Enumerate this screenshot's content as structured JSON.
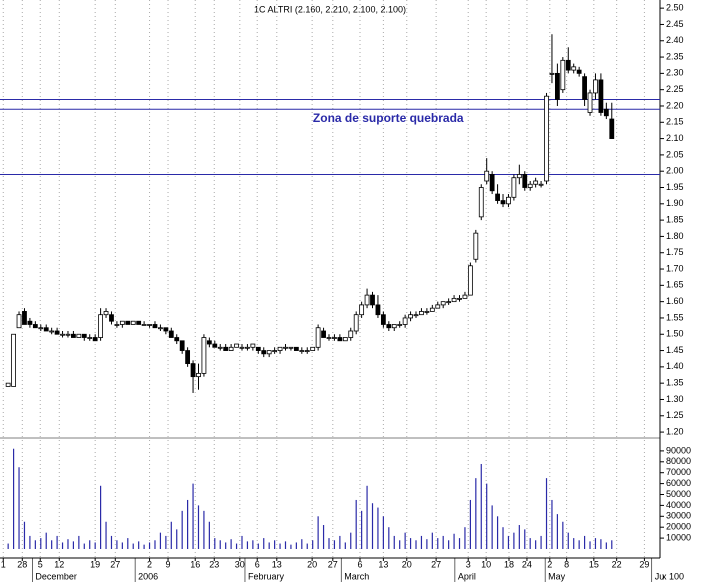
{
  "chart_data": {
    "type": "candlestick",
    "title": "1C ALTRI (2.160, 2.210, 2.100, 2.100)",
    "annotation": {
      "text": "Zona de suporte quebrada",
      "x": 69.9,
      "y": 2.16
    },
    "hlines": [
      2.22,
      2.19,
      1.99
    ],
    "hline_color": "#2a2aa8",
    "volume_unit": "x 100",
    "x": [
      0,
      1,
      2,
      3,
      4,
      5,
      6,
      7,
      8,
      9,
      10,
      11,
      12,
      13,
      14,
      15,
      16,
      17,
      18,
      19,
      20,
      21,
      22,
      23,
      24,
      25,
      26,
      27,
      28,
      29,
      30,
      31,
      32,
      33,
      34,
      35,
      36,
      37,
      38,
      39,
      40,
      41,
      42,
      43,
      44,
      45,
      46,
      47,
      48,
      49,
      50,
      51,
      52,
      53,
      54,
      55,
      56,
      57,
      58,
      59,
      60,
      61,
      62,
      63,
      64,
      65,
      66,
      67,
      68,
      69,
      70,
      71,
      72,
      73,
      74,
      75,
      76,
      77,
      78,
      79,
      80,
      81,
      82,
      83,
      84,
      85,
      86,
      87,
      88,
      89,
      90,
      91,
      92,
      93,
      94,
      95,
      96,
      97,
      98,
      99,
      100,
      101,
      102,
      103,
      104,
      105,
      106,
      107,
      108,
      109,
      110,
      111
    ],
    "open": [
      1.34,
      1.34,
      1.52,
      1.57,
      1.54,
      1.53,
      1.52,
      1.52,
      1.51,
      1.51,
      1.5,
      1.5,
      1.5,
      1.49,
      1.5,
      1.49,
      1.49,
      1.49,
      1.56,
      1.56,
      1.53,
      1.53,
      1.54,
      1.53,
      1.54,
      1.53,
      1.53,
      1.53,
      1.52,
      1.52,
      1.51,
      1.49,
      1.48,
      1.45,
      1.41,
      1.37,
      1.38,
      1.48,
      1.47,
      1.46,
      1.46,
      1.45,
      1.46,
      1.46,
      1.46,
      1.46,
      1.46,
      1.45,
      1.44,
      1.45,
      1.45,
      1.46,
      1.46,
      1.46,
      1.45,
      1.45,
      1.45,
      1.46,
      1.51,
      1.49,
      1.49,
      1.49,
      1.48,
      1.49,
      1.51,
      1.56,
      1.59,
      1.62,
      1.59,
      1.56,
      1.53,
      1.52,
      1.53,
      1.53,
      1.55,
      1.56,
      1.56,
      1.57,
      1.57,
      1.58,
      1.59,
      1.6,
      1.6,
      1.61,
      1.61,
      1.62,
      1.73,
      1.86,
      1.97,
      1.99,
      1.93,
      1.91,
      1.9,
      1.92,
      1.98,
      1.99,
      1.95,
      1.96,
      1.96,
      1.97,
      2.3,
      2.3,
      2.25,
      2.34,
      2.31,
      2.31,
      2.29,
      2.18,
      2.24,
      2.28,
      2.19,
      2.16
    ],
    "high": [
      1.35,
      1.5,
      1.57,
      1.58,
      1.55,
      1.54,
      1.53,
      1.53,
      1.52,
      1.52,
      1.51,
      1.51,
      1.51,
      1.5,
      1.5,
      1.5,
      1.5,
      1.58,
      1.58,
      1.57,
      1.54,
      1.54,
      1.54,
      1.54,
      1.54,
      1.54,
      1.53,
      1.54,
      1.53,
      1.52,
      1.52,
      1.5,
      1.48,
      1.46,
      1.42,
      1.41,
      1.5,
      1.49,
      1.48,
      1.47,
      1.47,
      1.47,
      1.47,
      1.47,
      1.47,
      1.47,
      1.46,
      1.46,
      1.45,
      1.46,
      1.46,
      1.47,
      1.46,
      1.46,
      1.46,
      1.46,
      1.46,
      1.53,
      1.52,
      1.5,
      1.5,
      1.5,
      1.49,
      1.52,
      1.57,
      1.6,
      1.64,
      1.63,
      1.62,
      1.57,
      1.54,
      1.53,
      1.54,
      1.56,
      1.57,
      1.57,
      1.58,
      1.58,
      1.59,
      1.6,
      1.6,
      1.61,
      1.62,
      1.62,
      1.63,
      1.72,
      1.82,
      1.96,
      2.04,
      2.0,
      1.96,
      1.93,
      1.93,
      1.99,
      2.02,
      2.0,
      1.97,
      1.98,
      1.97,
      2.24,
      2.42,
      2.33,
      2.35,
      2.38,
      2.33,
      2.32,
      2.3,
      2.25,
      2.3,
      2.3,
      2.21,
      2.21
    ],
    "low": [
      1.34,
      1.34,
      1.52,
      1.53,
      1.52,
      1.52,
      1.51,
      1.51,
      1.5,
      1.5,
      1.49,
      1.49,
      1.49,
      1.49,
      1.48,
      1.48,
      1.48,
      1.48,
      1.55,
      1.53,
      1.52,
      1.52,
      1.53,
      1.53,
      1.53,
      1.53,
      1.52,
      1.52,
      1.51,
      1.5,
      1.49,
      1.47,
      1.44,
      1.4,
      1.32,
      1.33,
      1.37,
      1.46,
      1.46,
      1.45,
      1.45,
      1.45,
      1.46,
      1.45,
      1.45,
      1.45,
      1.44,
      1.43,
      1.43,
      1.44,
      1.44,
      1.45,
      1.45,
      1.45,
      1.44,
      1.44,
      1.45,
      1.45,
      1.49,
      1.48,
      1.48,
      1.48,
      1.48,
      1.48,
      1.5,
      1.55,
      1.58,
      1.58,
      1.55,
      1.52,
      1.51,
      1.51,
      1.52,
      1.52,
      1.54,
      1.55,
      1.56,
      1.56,
      1.57,
      1.58,
      1.58,
      1.59,
      1.6,
      1.6,
      1.61,
      1.62,
      1.72,
      1.85,
      1.96,
      1.93,
      1.9,
      1.89,
      1.89,
      1.91,
      1.96,
      1.94,
      1.94,
      1.95,
      1.95,
      1.96,
      2.27,
      2.2,
      2.24,
      2.3,
      2.3,
      2.29,
      2.2,
      2.17,
      2.22,
      2.17,
      2.16,
      2.1
    ],
    "close": [
      1.35,
      1.5,
      1.56,
      1.53,
      1.53,
      1.52,
      1.52,
      1.51,
      1.51,
      1.5,
      1.5,
      1.5,
      1.49,
      1.5,
      1.49,
      1.49,
      1.48,
      1.56,
      1.57,
      1.54,
      1.53,
      1.54,
      1.53,
      1.54,
      1.53,
      1.53,
      1.53,
      1.52,
      1.52,
      1.51,
      1.49,
      1.48,
      1.45,
      1.41,
      1.37,
      1.38,
      1.49,
      1.47,
      1.46,
      1.46,
      1.45,
      1.46,
      1.47,
      1.46,
      1.46,
      1.47,
      1.45,
      1.44,
      1.45,
      1.45,
      1.46,
      1.46,
      1.46,
      1.45,
      1.45,
      1.45,
      1.46,
      1.52,
      1.49,
      1.49,
      1.49,
      1.48,
      1.49,
      1.51,
      1.56,
      1.59,
      1.62,
      1.59,
      1.56,
      1.53,
      1.52,
      1.53,
      1.53,
      1.55,
      1.56,
      1.56,
      1.57,
      1.57,
      1.58,
      1.59,
      1.6,
      1.6,
      1.61,
      1.61,
      1.62,
      1.71,
      1.81,
      1.95,
      2.0,
      1.94,
      1.91,
      1.9,
      1.92,
      1.98,
      1.99,
      1.95,
      1.96,
      1.97,
      1.96,
      2.23,
      2.3,
      2.22,
      2.34,
      2.31,
      2.32,
      2.3,
      2.22,
      2.24,
      2.28,
      2.18,
      2.17,
      2.1
    ],
    "volume": [
      5000,
      92000,
      75000,
      25000,
      12000,
      8000,
      10000,
      15000,
      8000,
      12000,
      6000,
      9000,
      7000,
      12000,
      5000,
      8000,
      6000,
      58000,
      25000,
      12000,
      8000,
      6000,
      10000,
      5000,
      7000,
      4000,
      6000,
      8000,
      15000,
      12000,
      25000,
      18000,
      35000,
      45000,
      60000,
      40000,
      35000,
      25000,
      10000,
      8000,
      6000,
      9000,
      5000,
      12000,
      7000,
      8000,
      5000,
      10000,
      6000,
      8000,
      5000,
      7000,
      4000,
      6000,
      9000,
      5000,
      8000,
      30000,
      22000,
      10000,
      8000,
      12000,
      6000,
      15000,
      45000,
      35000,
      58000,
      42000,
      38000,
      30000,
      20000,
      12000,
      8000,
      15000,
      10000,
      8000,
      12000,
      9000,
      15000,
      10000,
      12000,
      8000,
      14000,
      10000,
      20000,
      45000,
      65000,
      78000,
      60000,
      40000,
      30000,
      20000,
      12000,
      15000,
      22000,
      18000,
      10000,
      8000,
      12000,
      65000,
      45000,
      32000,
      25000,
      15000,
      10000,
      8000,
      12000,
      7000,
      10000,
      9000,
      6000,
      8000
    ],
    "up_color": "#ffffff",
    "down_color": "#000000",
    "volume_color": "#2a2aa8",
    "xlim": [
      -1.5,
      119.5
    ],
    "ylim": [
      1.188,
      2.525
    ],
    "y2lim": [
      0,
      100000
    ],
    "xticks": [
      {
        "value": -0.9,
        "label": "1"
      },
      {
        "value": 2.6,
        "label": "28"
      },
      {
        "value": 5.9,
        "label": "5"
      },
      {
        "value": 9.4,
        "label": "12"
      },
      {
        "value": 16,
        "label": "19"
      },
      {
        "value": 19.7,
        "label": "27"
      },
      {
        "value": 26,
        "label": "2"
      },
      {
        "value": 29.4,
        "label": "9"
      },
      {
        "value": 34.4,
        "label": "16"
      },
      {
        "value": 37.9,
        "label": "23"
      },
      {
        "value": 42.6,
        "label": "30"
      },
      {
        "value": 45.8,
        "label": "6"
      },
      {
        "value": 49.4,
        "label": "13"
      },
      {
        "value": 55.9,
        "label": "20"
      },
      {
        "value": 59.7,
        "label": "27"
      },
      {
        "value": 64.7,
        "label": "6"
      },
      {
        "value": 69,
        "label": "13"
      },
      {
        "value": 73.3,
        "label": "20"
      },
      {
        "value": 78.7,
        "label": "27"
      },
      {
        "value": 84.6,
        "label": "3"
      },
      {
        "value": 87.9,
        "label": "10"
      },
      {
        "value": 92.1,
        "label": "18"
      },
      {
        "value": 95.4,
        "label": "24"
      },
      {
        "value": 99.6,
        "label": "2"
      },
      {
        "value": 102.7,
        "label": "8"
      },
      {
        "value": 107.7,
        "label": "15"
      },
      {
        "value": 111.9,
        "label": "22"
      },
      {
        "value": 117,
        "label": "29"
      }
    ],
    "month_labels": [
      {
        "value": 5,
        "label": "December"
      },
      {
        "value": 23.9,
        "label": "2006"
      },
      {
        "value": 44.1,
        "label": "February"
      },
      {
        "value": 61.8,
        "label": "March"
      },
      {
        "value": 82.7,
        "label": "April"
      },
      {
        "value": 99.3,
        "label": "May"
      },
      {
        "value": 118.9,
        "label": "Ju"
      }
    ],
    "yticks": [
      {
        "value": 1.2,
        "label": "1.20"
      },
      {
        "value": 1.25,
        "label": "1.25"
      },
      {
        "value": 1.3,
        "label": "1.30"
      },
      {
        "value": 1.35,
        "label": "1.35"
      },
      {
        "value": 1.4,
        "label": "1.40"
      },
      {
        "value": 1.45,
        "label": "1.45"
      },
      {
        "value": 1.5,
        "label": "1.50"
      },
      {
        "value": 1.55,
        "label": "1.55"
      },
      {
        "value": 1.6,
        "label": "1.60"
      },
      {
        "value": 1.65,
        "label": "1.65"
      },
      {
        "value": 1.7,
        "label": "1.70"
      },
      {
        "value": 1.75,
        "label": "1.75"
      },
      {
        "value": 1.8,
        "label": "1.80"
      },
      {
        "value": 1.85,
        "label": "1.85"
      },
      {
        "value": 1.9,
        "label": "1.90"
      },
      {
        "value": 1.95,
        "label": "1.95"
      },
      {
        "value": 2.0,
        "label": "2.00"
      },
      {
        "value": 2.05,
        "label": "2.05"
      },
      {
        "value": 2.1,
        "label": "2.10"
      },
      {
        "value": 2.15,
        "label": "2.15"
      },
      {
        "value": 2.2,
        "label": "2.20"
      },
      {
        "value": 2.25,
        "label": "2.25"
      },
      {
        "value": 2.3,
        "label": "2.30"
      },
      {
        "value": 2.35,
        "label": "2.35"
      },
      {
        "value": 2.4,
        "label": "2.40"
      },
      {
        "value": 2.45,
        "label": "2.45"
      },
      {
        "value": 2.5,
        "label": "2.50"
      }
    ],
    "y2ticks": [
      10000,
      20000,
      30000,
      40000,
      50000,
      60000,
      70000,
      80000,
      90000
    ],
    "grid": true
  }
}
